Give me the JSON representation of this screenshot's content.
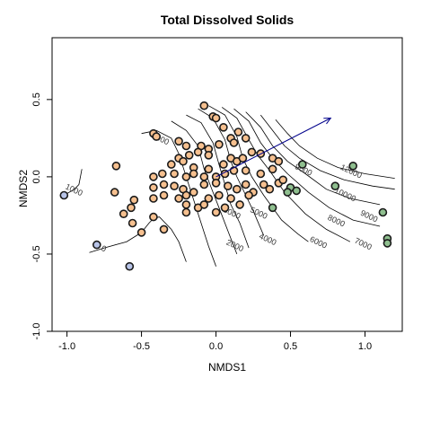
{
  "chart_data": {
    "type": "scatter",
    "title": "Total Dissolved Solids",
    "xlabel": "NMDS1",
    "ylabel": "NMDS2",
    "xlim": [
      -1.1,
      1.25
    ],
    "ylim": [
      -1.0,
      0.9
    ],
    "xticks": [
      -1.0,
      -0.5,
      0.0,
      0.5,
      1.0
    ],
    "xtick_labels": [
      "-1.0",
      "-0.5",
      "0.0",
      "0.5",
      "1.0"
    ],
    "yticks": [
      -1.0,
      -0.5,
      0.0,
      0.5
    ],
    "ytick_labels": [
      "-1.0",
      "-0.5",
      "0.0",
      "0.5"
    ],
    "grid": false,
    "vector": {
      "x0": 0.0,
      "y0": 0.0,
      "x1": 0.77,
      "y1": 0.38,
      "color": "#00008b"
    },
    "groups": [
      {
        "color": "#f6c08f",
        "points": [
          [
            -0.42,
            0.28
          ],
          [
            -0.4,
            0.26
          ],
          [
            -0.25,
            0.23
          ],
          [
            -0.2,
            0.2
          ],
          [
            -0.1,
            0.2
          ],
          [
            -0.05,
            0.18
          ],
          [
            -0.08,
            0.46
          ],
          [
            -0.02,
            0.39
          ],
          [
            0.0,
            0.38
          ],
          [
            0.05,
            0.32
          ],
          [
            0.1,
            0.25
          ],
          [
            0.15,
            0.29
          ],
          [
            0.2,
            0.25
          ],
          [
            0.12,
            0.22
          ],
          [
            0.02,
            0.21
          ],
          [
            -0.05,
            0.14
          ],
          [
            -0.12,
            0.16
          ],
          [
            -0.18,
            0.14
          ],
          [
            -0.25,
            0.12
          ],
          [
            -0.3,
            0.08
          ],
          [
            -0.22,
            0.1
          ],
          [
            -0.15,
            0.06
          ],
          [
            -0.05,
            0.05
          ],
          [
            0.05,
            0.08
          ],
          [
            0.1,
            0.12
          ],
          [
            0.14,
            0.1
          ],
          [
            0.18,
            0.12
          ],
          [
            0.24,
            0.16
          ],
          [
            0.3,
            0.15
          ],
          [
            0.38,
            0.12
          ],
          [
            0.42,
            0.1
          ],
          [
            0.38,
            0.05
          ],
          [
            0.3,
            0.02
          ],
          [
            0.2,
            0.04
          ],
          [
            0.12,
            0.04
          ],
          [
            0.06,
            0.02
          ],
          [
            0.0,
            0.0
          ],
          [
            -0.08,
            0.0
          ],
          [
            -0.15,
            0.02
          ],
          [
            -0.2,
            0.0
          ],
          [
            -0.28,
            0.02
          ],
          [
            -0.36,
            0.02
          ],
          [
            -0.42,
            0.0
          ],
          [
            -0.35,
            -0.05
          ],
          [
            -0.28,
            -0.06
          ],
          [
            -0.22,
            -0.08
          ],
          [
            -0.15,
            -0.1
          ],
          [
            -0.08,
            -0.05
          ],
          [
            0.0,
            -0.04
          ],
          [
            0.08,
            -0.06
          ],
          [
            0.14,
            -0.08
          ],
          [
            0.2,
            -0.05
          ],
          [
            0.25,
            -0.1
          ],
          [
            0.32,
            -0.05
          ],
          [
            0.36,
            -0.08
          ],
          [
            0.42,
            -0.04
          ],
          [
            0.45,
            -0.02
          ],
          [
            -0.42,
            -0.07
          ],
          [
            -0.35,
            -0.12
          ],
          [
            -0.25,
            -0.14
          ],
          [
            -0.2,
            -0.18
          ],
          [
            -0.12,
            -0.2
          ],
          [
            -0.05,
            -0.14
          ],
          [
            0.02,
            -0.12
          ],
          [
            0.1,
            -0.14
          ],
          [
            0.16,
            -0.18
          ],
          [
            0.22,
            -0.12
          ],
          [
            -0.42,
            -0.14
          ],
          [
            -0.55,
            -0.15
          ],
          [
            -0.57,
            -0.2
          ],
          [
            -0.68,
            -0.1
          ],
          [
            -0.62,
            -0.24
          ],
          [
            -0.56,
            -0.3
          ],
          [
            -0.5,
            -0.36
          ],
          [
            -0.42,
            -0.26
          ],
          [
            -0.35,
            -0.34
          ],
          [
            -0.2,
            -0.23
          ],
          [
            -0.2,
            -0.12
          ],
          [
            -0.08,
            -0.18
          ],
          [
            0.0,
            -0.23
          ],
          [
            0.06,
            -0.2
          ],
          [
            -0.67,
            0.07
          ]
        ]
      },
      {
        "color": "#8fbf8f",
        "points": [
          [
            0.58,
            0.08
          ],
          [
            0.8,
            -0.06
          ],
          [
            0.92,
            0.07
          ],
          [
            0.5,
            -0.07
          ],
          [
            0.54,
            -0.09
          ],
          [
            0.48,
            -0.1
          ],
          [
            0.38,
            -0.2
          ],
          [
            1.12,
            -0.23
          ],
          [
            1.15,
            -0.4
          ],
          [
            1.15,
            -0.43
          ]
        ]
      },
      {
        "color": "#b8c4e8",
        "points": [
          [
            -1.02,
            -0.12
          ],
          [
            -0.8,
            -0.44
          ],
          [
            -0.58,
            -0.58
          ]
        ]
      }
    ],
    "contour_labels": [
      {
        "text": "0",
        "x": -0.76,
        "y": -0.48
      },
      {
        "text": "1000",
        "x": -0.96,
        "y": -0.1
      },
      {
        "text": "1000",
        "x": -0.38,
        "y": 0.23
      },
      {
        "text": "2000",
        "x": 0.12,
        "y": -0.46
      },
      {
        "text": "3000",
        "x": 0.1,
        "y": -0.25
      },
      {
        "text": "4000",
        "x": 0.34,
        "y": -0.42
      },
      {
        "text": "5000",
        "x": 0.28,
        "y": -0.25
      },
      {
        "text": "6000",
        "x": 0.68,
        "y": -0.44
      },
      {
        "text": "7000",
        "x": 0.98,
        "y": -0.45
      },
      {
        "text": "8000",
        "x": 0.8,
        "y": -0.3
      },
      {
        "text": "9000",
        "x": 1.02,
        "y": -0.27
      },
      {
        "text": "10000",
        "x": 0.86,
        "y": -0.13
      },
      {
        "text": "12000",
        "x": 0.9,
        "y": 0.02
      },
      {
        "text": "9000",
        "x": 0.58,
        "y": 0.03
      }
    ],
    "contours": [
      [
        [
          -1.02,
          -0.12
        ],
        [
          -0.95,
          -0.08
        ],
        [
          -0.92,
          -0.05
        ],
        [
          -0.9,
          0.05
        ]
      ],
      [
        [
          -0.85,
          -0.49
        ],
        [
          -0.75,
          -0.46
        ],
        [
          -0.6,
          -0.42
        ],
        [
          -0.5,
          -0.36
        ],
        [
          -0.45,
          -0.3
        ],
        [
          -0.42,
          -0.27
        ],
        [
          -0.38,
          -0.26
        ],
        [
          -0.3,
          -0.34
        ],
        [
          -0.25,
          -0.42
        ],
        [
          -0.2,
          -0.55
        ]
      ],
      [
        [
          -0.5,
          0.28
        ],
        [
          -0.4,
          0.3
        ],
        [
          -0.3,
          0.25
        ],
        [
          -0.25,
          0.15
        ],
        [
          -0.2,
          0.0
        ],
        [
          -0.15,
          -0.15
        ],
        [
          -0.1,
          -0.3
        ],
        [
          -0.05,
          -0.45
        ],
        [
          0.0,
          -0.58
        ]
      ],
      [
        [
          -0.3,
          0.36
        ],
        [
          -0.2,
          0.3
        ],
        [
          -0.12,
          0.2
        ],
        [
          -0.08,
          0.05
        ],
        [
          -0.02,
          -0.1
        ],
        [
          0.02,
          -0.2
        ],
        [
          0.08,
          -0.35
        ],
        [
          0.14,
          -0.5
        ]
      ],
      [
        [
          -0.2,
          0.4
        ],
        [
          -0.1,
          0.35
        ],
        [
          -0.02,
          0.22
        ],
        [
          0.02,
          0.08
        ],
        [
          0.06,
          -0.05
        ],
        [
          0.1,
          -0.18
        ],
        [
          0.16,
          -0.3
        ],
        [
          0.22,
          -0.46
        ]
      ],
      [
        [
          -0.12,
          0.44
        ],
        [
          -0.02,
          0.38
        ],
        [
          0.06,
          0.24
        ],
        [
          0.1,
          0.1
        ],
        [
          0.14,
          0.0
        ],
        [
          0.2,
          -0.12
        ],
        [
          0.25,
          -0.22
        ],
        [
          0.32,
          -0.38
        ]
      ],
      [
        [
          -0.05,
          0.46
        ],
        [
          0.06,
          0.4
        ],
        [
          0.14,
          0.26
        ],
        [
          0.18,
          0.12
        ],
        [
          0.24,
          0.0
        ],
        [
          0.32,
          -0.12
        ],
        [
          0.44,
          -0.28
        ],
        [
          0.55,
          -0.37
        ],
        [
          0.62,
          -0.42
        ]
      ],
      [
        [
          0.04,
          0.45
        ],
        [
          0.14,
          0.38
        ],
        [
          0.22,
          0.24
        ],
        [
          0.28,
          0.14
        ],
        [
          0.36,
          0.04
        ],
        [
          0.46,
          -0.1
        ],
        [
          0.6,
          -0.24
        ],
        [
          0.74,
          -0.34
        ],
        [
          0.9,
          -0.42
        ]
      ],
      [
        [
          0.12,
          0.44
        ],
        [
          0.22,
          0.36
        ],
        [
          0.3,
          0.22
        ],
        [
          0.38,
          0.12
        ],
        [
          0.48,
          0.02
        ],
        [
          0.62,
          -0.1
        ],
        [
          0.76,
          -0.2
        ],
        [
          0.92,
          -0.28
        ],
        [
          1.1,
          -0.32
        ]
      ],
      [
        [
          0.2,
          0.42
        ],
        [
          0.3,
          0.32
        ],
        [
          0.38,
          0.2
        ],
        [
          0.48,
          0.1
        ],
        [
          0.6,
          0.02
        ],
        [
          0.74,
          -0.08
        ],
        [
          0.9,
          -0.14
        ],
        [
          1.1,
          -0.18
        ]
      ],
      [
        [
          0.3,
          0.4
        ],
        [
          0.38,
          0.3
        ],
        [
          0.46,
          0.2
        ],
        [
          0.56,
          0.12
        ],
        [
          0.7,
          0.04
        ],
        [
          0.86,
          -0.02
        ],
        [
          1.05,
          -0.06
        ],
        [
          1.2,
          -0.08
        ]
      ],
      [
        [
          0.4,
          0.37
        ],
        [
          0.48,
          0.28
        ],
        [
          0.56,
          0.2
        ],
        [
          0.68,
          0.12
        ],
        [
          0.82,
          0.06
        ],
        [
          1.0,
          0.02
        ],
        [
          1.2,
          -0.01
        ]
      ]
    ]
  }
}
